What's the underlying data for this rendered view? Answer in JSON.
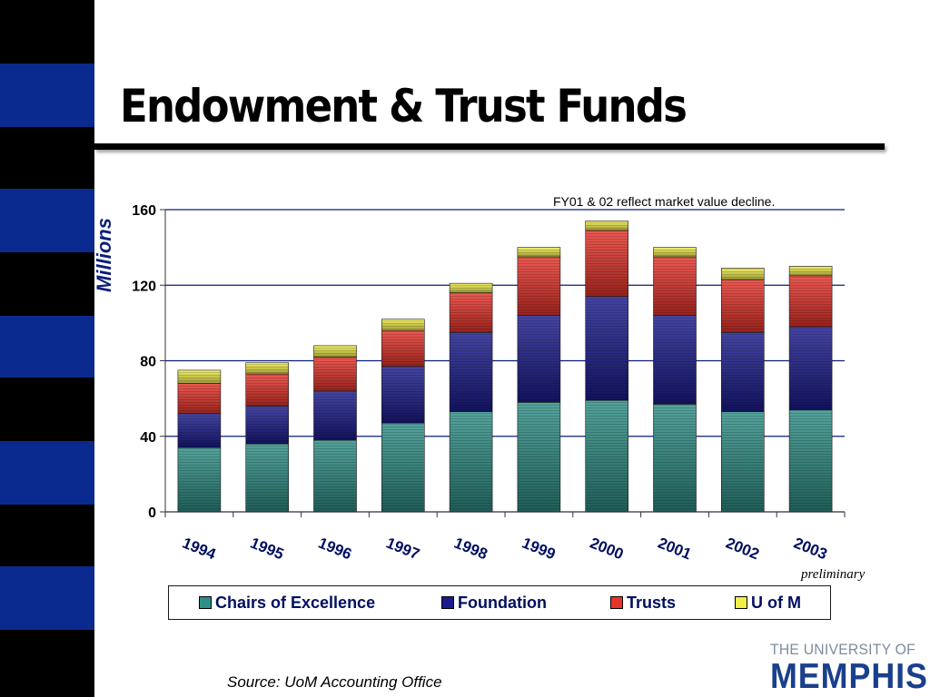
{
  "slide": {
    "title": "Endowment & Trust Funds",
    "note": "FY01 & 02 reflect market value decline.",
    "preliminary_label": "preliminary",
    "source": "Source: UoM Accounting Office"
  },
  "logo": {
    "line1": "THE UNIVERSITY OF",
    "line2": "MEMPHIS"
  },
  "colors": {
    "stripe_black": "#000000",
    "stripe_blue": "#0b2a8f",
    "axis_label": "#0a1e7a"
  },
  "chart_data": {
    "type": "bar",
    "stacked": true,
    "title": "Endowment & Trust Funds",
    "ylabel": "Millions",
    "xlabel": "",
    "ylim": [
      0,
      160
    ],
    "yticks": [
      0,
      40,
      80,
      120,
      160
    ],
    "grid": true,
    "legend_position": "bottom",
    "categories": [
      "1994",
      "1995",
      "1996",
      "1997",
      "1998",
      "1999",
      "2000",
      "2001",
      "2002",
      "2003"
    ],
    "series": [
      {
        "name": "Chairs of Excellence",
        "color": "#2f8f86",
        "values": [
          34,
          36,
          38,
          47,
          53,
          58,
          59,
          57,
          53,
          54
        ]
      },
      {
        "name": "Foundation",
        "color": "#1c1c8f",
        "values": [
          18,
          20,
          26,
          30,
          42,
          46,
          55,
          47,
          42,
          44
        ]
      },
      {
        "name": "Trusts",
        "color": "#e8352b",
        "values": [
          16,
          17,
          18,
          19,
          21,
          31,
          35,
          31,
          28,
          27
        ]
      },
      {
        "name": "U of M",
        "color": "#f2ee4a",
        "values": [
          7,
          6,
          6,
          6,
          5,
          5,
          5,
          5,
          6,
          5
        ]
      }
    ]
  }
}
